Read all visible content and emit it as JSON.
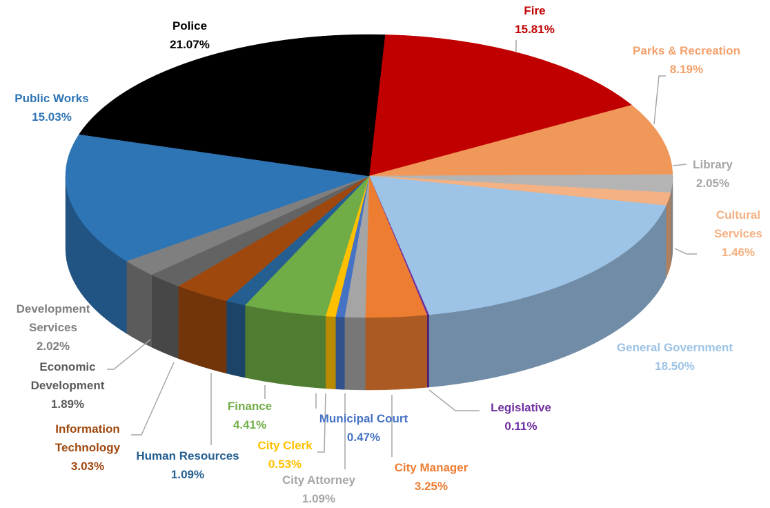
{
  "chart_data": {
    "type": "pie",
    "categories": [
      "Fire",
      "Parks & Recreation",
      "Library",
      "Cultural Services",
      "General Government",
      "Legislative",
      "City Manager",
      "City Attorney",
      "Municipal Court",
      "City Clerk",
      "Finance",
      "Human Resources",
      "Information Technology",
      "Economic Development",
      "Development Services",
      "Public Works",
      "Police"
    ],
    "values": [
      15.81,
      8.19,
      2.05,
      1.46,
      18.5,
      0.11,
      3.25,
      1.09,
      0.47,
      0.53,
      4.41,
      1.09,
      3.03,
      1.89,
      2.02,
      15.03,
      21.07
    ],
    "value_labels": [
      "15.81%",
      "8.19%",
      "2.05%",
      "1.46%",
      "18.50%",
      "0.11%",
      "3.25%",
      "1.09%",
      "0.47%",
      "0.53%",
      "4.41%",
      "1.09%",
      "3.03%",
      "1.89%",
      "2.02%",
      "15.03%",
      "21.07%"
    ],
    "colors": [
      "#c00000",
      "#f0975a",
      "#b4b4b4",
      "#f4b183",
      "#9dc3e6",
      "#7030a0",
      "#ed7d31",
      "#a5a5a5",
      "#4472c4",
      "#ffc000",
      "#70ad47",
      "#255e91",
      "#9e480e",
      "#636363",
      "#7f7f7f",
      "#2e75b6",
      "#000000"
    ]
  }
}
